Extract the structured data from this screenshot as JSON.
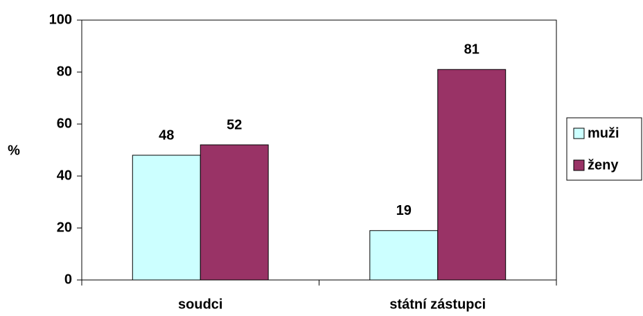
{
  "chart_data": {
    "type": "bar",
    "y_label": "%",
    "categories": [
      "soudci",
      "státní zástupci"
    ],
    "series": [
      {
        "name": "muži",
        "color": "#ccffff",
        "values": [
          48,
          19
        ]
      },
      {
        "name": "ženy",
        "color": "#993366",
        "values": [
          52,
          81
        ]
      }
    ],
    "ylim": [
      0,
      100
    ],
    "yticks": [
      0,
      20,
      40,
      60,
      80,
      100
    ],
    "legend": "right"
  }
}
